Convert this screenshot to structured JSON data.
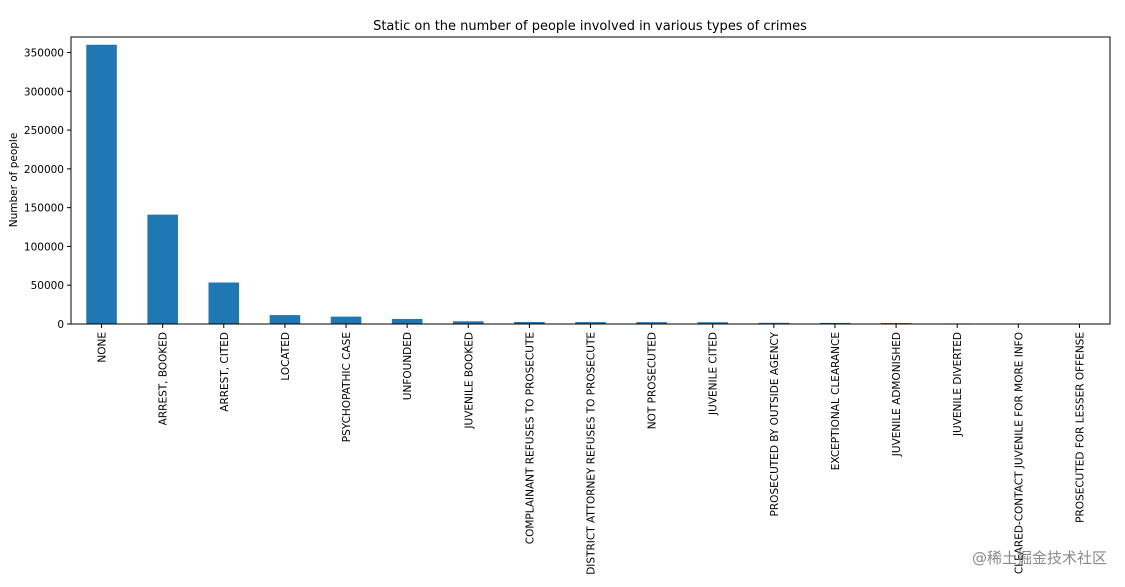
{
  "chart_data": {
    "type": "bar",
    "title": "Static on the number of people involved in various types of crimes",
    "xlabel": "",
    "ylabel": "Number of people",
    "ylim": [
      0,
      370000
    ],
    "yticks": [
      0,
      50000,
      100000,
      150000,
      200000,
      250000,
      300000,
      350000
    ],
    "legend": "none",
    "grid": false,
    "bar_color": "#1f77b4",
    "categories": [
      "NONE",
      "ARREST, BOOKED",
      "ARREST, CITED",
      "LOCATED",
      "PSYCHOPATHIC CASE",
      "UNFOUNDED",
      "JUVENILE BOOKED",
      "COMPLAINANT REFUSES TO PROSECUTE",
      "DISTRICT ATTORNEY REFUSES TO PROSECUTE",
      "NOT PROSECUTED",
      "JUVENILE CITED",
      "PROSECUTED BY OUTSIDE AGENCY",
      "EXCEPTIONAL CLEARANCE",
      "JUVENILE ADMONISHED",
      "JUVENILE DIVERTED",
      "CLEARED-CONTACT JUVENILE FOR MORE INFO",
      "PROSECUTED FOR LESSER OFFENSE"
    ],
    "values": [
      360000,
      141000,
      53500,
      11500,
      9500,
      6500,
      3500,
      2600,
      2500,
      2400,
      2300,
      1500,
      1400,
      1200,
      700,
      500,
      300
    ]
  },
  "watermark": {
    "text": "@稀土掘金技术社区"
  }
}
